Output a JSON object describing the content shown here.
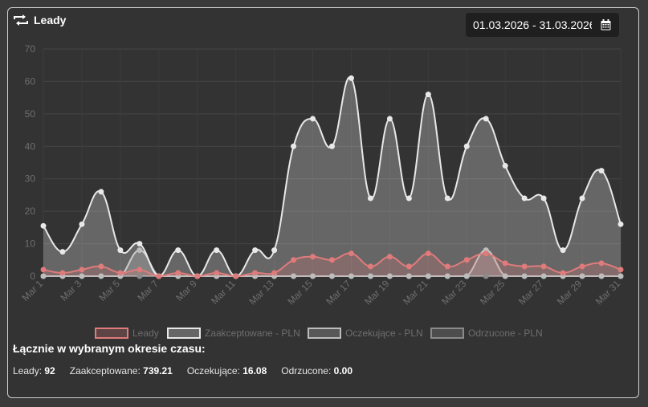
{
  "header": {
    "title": "Leady",
    "title_icon": "repeat-icon",
    "date_range": "01.03.2026 - 31.03.2026",
    "date_icon": "calendar-icon"
  },
  "chart_data": {
    "type": "area",
    "categories": [
      "Mar 1",
      "Mar 2",
      "Mar 3",
      "Mar 4",
      "Mar 5",
      "Mar 6",
      "Mar 7",
      "Mar 8",
      "Mar 9",
      "Mar 10",
      "Mar 11",
      "Mar 12",
      "Mar 13",
      "Mar 14",
      "Mar 15",
      "Mar 16",
      "Mar 17",
      "Mar 18",
      "Mar 19",
      "Mar 20",
      "Mar 21",
      "Mar 22",
      "Mar 23",
      "Mar 24",
      "Mar 25",
      "Mar 26",
      "Mar 27",
      "Mar 28",
      "Mar 29",
      "Mar 30",
      "Mar 31"
    ],
    "tick_labels": [
      "Mar 1",
      "Mar 3",
      "Mar 5",
      "Mar 7",
      "Mar 9",
      "Mar 11",
      "Mar 13",
      "Mar 15",
      "Mar 17",
      "Mar 19",
      "Mar 21",
      "Mar 23",
      "Mar 25",
      "Mar 27",
      "Mar 29",
      "Mar 31"
    ],
    "ylim": [
      0,
      70
    ],
    "yticks": [
      0,
      10,
      20,
      30,
      40,
      50,
      60,
      70
    ],
    "grid": true,
    "legend_position": "bottom",
    "series": [
      {
        "name": "Leady",
        "color": "#e07b7b",
        "fill": "rgba(224,123,123,0.25)",
        "values": [
          2,
          1,
          2,
          3,
          1,
          2,
          0,
          1,
          0,
          1,
          0,
          1,
          1,
          5,
          6,
          5,
          7,
          3,
          6,
          3,
          7,
          3,
          5,
          7,
          4,
          3,
          3,
          1,
          3,
          4,
          2
        ]
      },
      {
        "name": "Zaakceptowane - PLN",
        "color": "#e8e8e8",
        "fill": "rgba(255,255,255,0.25)",
        "values": [
          15.5,
          7.5,
          16,
          26,
          8,
          10,
          0,
          8,
          0,
          8,
          0,
          8,
          8,
          40,
          48.5,
          40,
          61,
          24,
          48.5,
          24,
          56,
          24,
          40,
          48.5,
          34,
          24,
          24,
          8,
          24,
          32.5,
          16
        ]
      },
      {
        "name": "Oczekujące - PLN",
        "color": "#bdbdbd",
        "fill": "rgba(200,200,200,0.25)",
        "values": [
          0,
          0,
          0,
          0,
          0,
          8,
          0,
          0,
          0,
          0,
          0,
          0,
          0,
          0,
          0,
          0,
          0,
          0,
          0,
          0,
          0,
          0,
          0,
          8,
          0,
          0,
          0,
          0,
          0,
          0,
          0
        ]
      },
      {
        "name": "Odrzucone - PLN",
        "color": "#8a8a8a",
        "fill": "rgba(150,150,150,0.25)",
        "values": [
          0,
          0,
          0,
          0,
          0,
          0,
          0,
          0,
          0,
          0,
          0,
          0,
          0,
          0,
          0,
          0,
          0,
          0,
          0,
          0,
          0,
          0,
          0,
          0,
          0,
          0,
          0,
          0,
          0,
          0,
          0
        ]
      }
    ]
  },
  "summary": {
    "title": "Łącznie w wybranym okresie czasu:",
    "items": [
      {
        "label": "Leady:",
        "value": "92"
      },
      {
        "label": "Zaakceptowane:",
        "value": "739.21"
      },
      {
        "label": "Oczekujące:",
        "value": "16.08"
      },
      {
        "label": "Odrzucone:",
        "value": "0.00"
      }
    ]
  }
}
